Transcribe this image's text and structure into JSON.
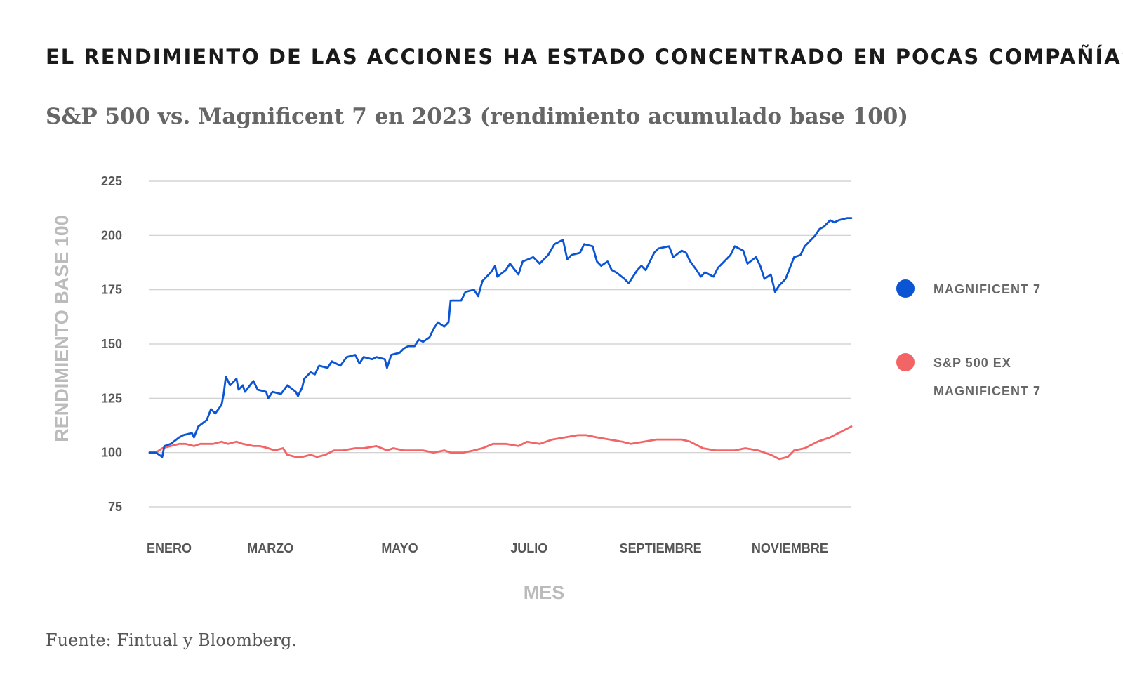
{
  "page": {
    "headline": "EL RENDIMIENTO DE LAS ACCIONES HA ESTADO CONCENTRADO EN POCAS COMPAÑÍAS",
    "subtitle": "S&P 500 vs. Magnificent 7 en 2023 (rendimiento acumulado base 100)",
    "source": "Fuente: Fintual y Bloomberg."
  },
  "chart_data": {
    "type": "line",
    "xlabel": "MES",
    "ylabel": "RENDIMIENTO BASE 100",
    "ylim": [
      75,
      225
    ],
    "yticks": [
      75,
      100,
      125,
      150,
      175,
      200,
      225
    ],
    "xlim": [
      "2023-01-03",
      "2023-11-30"
    ],
    "xticks": [
      {
        "date": "2023-01-03",
        "label": "ENERO"
      },
      {
        "date": "2023-03-01",
        "label": "MARZO"
      },
      {
        "date": "2023-05-01",
        "label": "MAYO"
      },
      {
        "date": "2023-07-01",
        "label": "JULIO"
      },
      {
        "date": "2023-09-01",
        "label": "SEPTIEMBRE"
      },
      {
        "date": "2023-11-01",
        "label": "NOVIEMBRE"
      }
    ],
    "grid": true,
    "legend_position": "right",
    "series": [
      {
        "name": "MAGNIFICENT 7",
        "legend_lines": [
          "MAGNIFICENT 7"
        ],
        "color": "#0b55d4",
        "points": [
          [
            "2023-01-03",
            100
          ],
          [
            "2023-01-06",
            100
          ],
          [
            "2023-01-09",
            98
          ],
          [
            "2023-01-10",
            103
          ],
          [
            "2023-01-13",
            104
          ],
          [
            "2023-01-17",
            107
          ],
          [
            "2023-01-19",
            108
          ],
          [
            "2023-01-23",
            109
          ],
          [
            "2023-01-24",
            107
          ],
          [
            "2023-01-26",
            112
          ],
          [
            "2023-01-30",
            115
          ],
          [
            "2023-02-01",
            120
          ],
          [
            "2023-02-03",
            118
          ],
          [
            "2023-02-06",
            122
          ],
          [
            "2023-02-07",
            127
          ],
          [
            "2023-02-08",
            135
          ],
          [
            "2023-02-10",
            131
          ],
          [
            "2023-02-13",
            134
          ],
          [
            "2023-02-14",
            129
          ],
          [
            "2023-02-16",
            131
          ],
          [
            "2023-02-17",
            128
          ],
          [
            "2023-02-21",
            133
          ],
          [
            "2023-02-23",
            129
          ],
          [
            "2023-02-27",
            128
          ],
          [
            "2023-02-28",
            125
          ],
          [
            "2023-03-02",
            128
          ],
          [
            "2023-03-06",
            127
          ],
          [
            "2023-03-09",
            131
          ],
          [
            "2023-03-13",
            128
          ],
          [
            "2023-03-14",
            126
          ],
          [
            "2023-03-16",
            130
          ],
          [
            "2023-03-17",
            134
          ],
          [
            "2023-03-20",
            137
          ],
          [
            "2023-03-22",
            136
          ],
          [
            "2023-03-24",
            140
          ],
          [
            "2023-03-28",
            139
          ],
          [
            "2023-03-30",
            142
          ],
          [
            "2023-04-03",
            140
          ],
          [
            "2023-04-06",
            144
          ],
          [
            "2023-04-10",
            145
          ],
          [
            "2023-04-12",
            141
          ],
          [
            "2023-04-14",
            144
          ],
          [
            "2023-04-18",
            143
          ],
          [
            "2023-04-20",
            144
          ],
          [
            "2023-04-24",
            143
          ],
          [
            "2023-04-25",
            139
          ],
          [
            "2023-04-27",
            145
          ],
          [
            "2023-05-01",
            146
          ],
          [
            "2023-05-03",
            148
          ],
          [
            "2023-05-05",
            149
          ],
          [
            "2023-05-08",
            149
          ],
          [
            "2023-05-10",
            152
          ],
          [
            "2023-05-12",
            151
          ],
          [
            "2023-05-15",
            153
          ],
          [
            "2023-05-17",
            157
          ],
          [
            "2023-05-19",
            160
          ],
          [
            "2023-05-22",
            158
          ],
          [
            "2023-05-24",
            160
          ],
          [
            "2023-05-25",
            170
          ],
          [
            "2023-05-30",
            170
          ],
          [
            "2023-06-01",
            174
          ],
          [
            "2023-06-05",
            175
          ],
          [
            "2023-06-07",
            172
          ],
          [
            "2023-06-09",
            179
          ],
          [
            "2023-06-13",
            183
          ],
          [
            "2023-06-15",
            186
          ],
          [
            "2023-06-16",
            181
          ],
          [
            "2023-06-20",
            184
          ],
          [
            "2023-06-22",
            187
          ],
          [
            "2023-06-26",
            182
          ],
          [
            "2023-06-28",
            188
          ],
          [
            "2023-07-03",
            190
          ],
          [
            "2023-07-06",
            187
          ],
          [
            "2023-07-10",
            191
          ],
          [
            "2023-07-13",
            196
          ],
          [
            "2023-07-17",
            198
          ],
          [
            "2023-07-19",
            189
          ],
          [
            "2023-07-21",
            191
          ],
          [
            "2023-07-25",
            192
          ],
          [
            "2023-07-27",
            196
          ],
          [
            "2023-07-31",
            195
          ],
          [
            "2023-08-02",
            188
          ],
          [
            "2023-08-04",
            186
          ],
          [
            "2023-08-07",
            188
          ],
          [
            "2023-08-09",
            184
          ],
          [
            "2023-08-11",
            183
          ],
          [
            "2023-08-15",
            180
          ],
          [
            "2023-08-17",
            178
          ],
          [
            "2023-08-21",
            184
          ],
          [
            "2023-08-23",
            186
          ],
          [
            "2023-08-25",
            184
          ],
          [
            "2023-08-29",
            192
          ],
          [
            "2023-08-31",
            194
          ],
          [
            "2023-09-05",
            195
          ],
          [
            "2023-09-07",
            190
          ],
          [
            "2023-09-11",
            193
          ],
          [
            "2023-09-13",
            192
          ],
          [
            "2023-09-15",
            188
          ],
          [
            "2023-09-18",
            184
          ],
          [
            "2023-09-20",
            181
          ],
          [
            "2023-09-22",
            183
          ],
          [
            "2023-09-26",
            181
          ],
          [
            "2023-09-28",
            185
          ],
          [
            "2023-10-02",
            189
          ],
          [
            "2023-10-04",
            191
          ],
          [
            "2023-10-06",
            195
          ],
          [
            "2023-10-10",
            193
          ],
          [
            "2023-10-12",
            187
          ],
          [
            "2023-10-16",
            190
          ],
          [
            "2023-10-18",
            186
          ],
          [
            "2023-10-20",
            180
          ],
          [
            "2023-10-23",
            182
          ],
          [
            "2023-10-25",
            174
          ],
          [
            "2023-10-27",
            177
          ],
          [
            "2023-10-30",
            180
          ],
          [
            "2023-11-01",
            185
          ],
          [
            "2023-11-03",
            190
          ],
          [
            "2023-11-06",
            191
          ],
          [
            "2023-11-08",
            195
          ],
          [
            "2023-11-10",
            197
          ],
          [
            "2023-11-13",
            200
          ],
          [
            "2023-11-15",
            203
          ],
          [
            "2023-11-17",
            204
          ],
          [
            "2023-11-20",
            207
          ],
          [
            "2023-11-22",
            206
          ],
          [
            "2023-11-24",
            207
          ],
          [
            "2023-11-28",
            208
          ],
          [
            "2023-11-30",
            208
          ]
        ]
      },
      {
        "name": "S&P 500 EX MAGNIFICENT 7",
        "legend_lines": [
          "S&P 500 EX",
          "MAGNIFICENT 7"
        ],
        "color": "#f26466",
        "points": [
          [
            "2023-01-03",
            100
          ],
          [
            "2023-01-06",
            100
          ],
          [
            "2023-01-09",
            102
          ],
          [
            "2023-01-13",
            103
          ],
          [
            "2023-01-17",
            104
          ],
          [
            "2023-01-20",
            104
          ],
          [
            "2023-01-24",
            103
          ],
          [
            "2023-01-27",
            104
          ],
          [
            "2023-01-31",
            104
          ],
          [
            "2023-02-02",
            104
          ],
          [
            "2023-02-06",
            105
          ],
          [
            "2023-02-09",
            104
          ],
          [
            "2023-02-13",
            105
          ],
          [
            "2023-02-16",
            104
          ],
          [
            "2023-02-21",
            103
          ],
          [
            "2023-02-24",
            103
          ],
          [
            "2023-02-28",
            102
          ],
          [
            "2023-03-03",
            101
          ],
          [
            "2023-03-07",
            102
          ],
          [
            "2023-03-09",
            99
          ],
          [
            "2023-03-13",
            98
          ],
          [
            "2023-03-16",
            98
          ],
          [
            "2023-03-20",
            99
          ],
          [
            "2023-03-23",
            98
          ],
          [
            "2023-03-27",
            99
          ],
          [
            "2023-03-31",
            101
          ],
          [
            "2023-04-04",
            101
          ],
          [
            "2023-04-10",
            102
          ],
          [
            "2023-04-14",
            102
          ],
          [
            "2023-04-20",
            103
          ],
          [
            "2023-04-25",
            101
          ],
          [
            "2023-04-28",
            102
          ],
          [
            "2023-05-03",
            101
          ],
          [
            "2023-05-08",
            101
          ],
          [
            "2023-05-12",
            101
          ],
          [
            "2023-05-17",
            100
          ],
          [
            "2023-05-22",
            101
          ],
          [
            "2023-05-25",
            100
          ],
          [
            "2023-05-31",
            100
          ],
          [
            "2023-06-05",
            101
          ],
          [
            "2023-06-09",
            102
          ],
          [
            "2023-06-14",
            104
          ],
          [
            "2023-06-20",
            104
          ],
          [
            "2023-06-26",
            103
          ],
          [
            "2023-06-30",
            105
          ],
          [
            "2023-07-06",
            104
          ],
          [
            "2023-07-12",
            106
          ],
          [
            "2023-07-18",
            107
          ],
          [
            "2023-07-24",
            108
          ],
          [
            "2023-07-28",
            108
          ],
          [
            "2023-08-02",
            107
          ],
          [
            "2023-08-08",
            106
          ],
          [
            "2023-08-14",
            105
          ],
          [
            "2023-08-18",
            104
          ],
          [
            "2023-08-24",
            105
          ],
          [
            "2023-08-30",
            106
          ],
          [
            "2023-09-05",
            106
          ],
          [
            "2023-09-11",
            106
          ],
          [
            "2023-09-15",
            105
          ],
          [
            "2023-09-21",
            102
          ],
          [
            "2023-09-27",
            101
          ],
          [
            "2023-10-02",
            101
          ],
          [
            "2023-10-06",
            101
          ],
          [
            "2023-10-11",
            102
          ],
          [
            "2023-10-17",
            101
          ],
          [
            "2023-10-23",
            99
          ],
          [
            "2023-10-27",
            97
          ],
          [
            "2023-10-31",
            98
          ],
          [
            "2023-11-03",
            101
          ],
          [
            "2023-11-08",
            102
          ],
          [
            "2023-11-14",
            105
          ],
          [
            "2023-11-20",
            107
          ],
          [
            "2023-11-24",
            109
          ],
          [
            "2023-11-30",
            112
          ]
        ]
      }
    ]
  }
}
